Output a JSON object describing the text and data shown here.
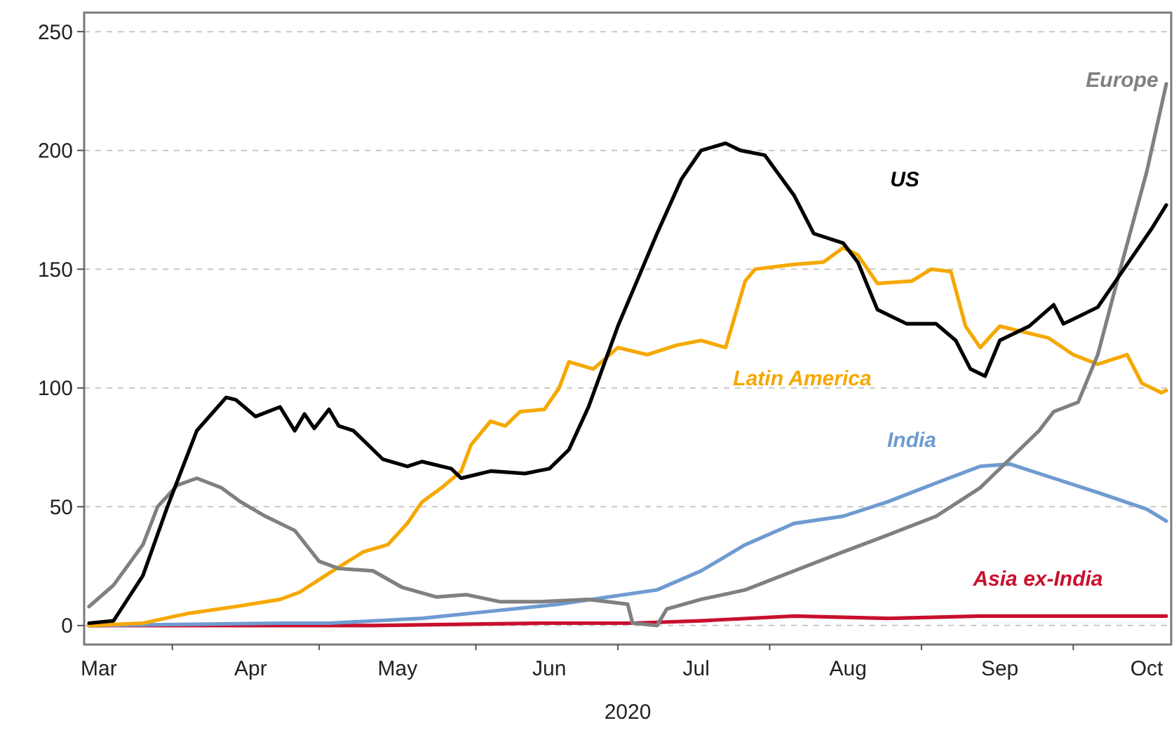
{
  "chart_data": {
    "type": "line",
    "xlabel": "2020",
    "xlim": [
      "2020-02-27",
      "2020-10-06"
    ],
    "ylim": [
      -8,
      258
    ],
    "xticks": [
      {
        "value": "2020-03-01",
        "label": "Mar"
      },
      {
        "value": "2020-03-16",
        "label": null
      },
      {
        "value": "2020-04-01",
        "label": "Apr"
      },
      {
        "value": "2020-04-15",
        "label": null
      },
      {
        "value": "2020-05-01",
        "label": "May"
      },
      {
        "value": "2020-05-17",
        "label": null
      },
      {
        "value": "2020-06-01",
        "label": "Jun"
      },
      {
        "value": "2020-06-15",
        "label": null
      },
      {
        "value": "2020-07-01",
        "label": "Jul"
      },
      {
        "value": "2020-07-16",
        "label": null
      },
      {
        "value": "2020-08-01",
        "label": "Aug"
      },
      {
        "value": "2020-08-16",
        "label": null
      },
      {
        "value": "2020-09-01",
        "label": "Sep"
      },
      {
        "value": "2020-09-16",
        "label": null
      },
      {
        "value": "2020-10-01",
        "label": "Oct"
      }
    ],
    "yticks": [
      0,
      50,
      100,
      150,
      200,
      250
    ],
    "grid": "y",
    "series": [
      {
        "name": "Asia ex-India",
        "color": "#c8102e",
        "x": [
          "2020-02-28",
          "2020-04-26",
          "2020-05-30",
          "2020-06-18",
          "2020-07-02",
          "2020-07-21",
          "2020-08-09",
          "2020-08-28",
          "2020-09-21",
          "2020-10-05"
        ],
        "values": [
          0,
          0,
          1,
          1,
          2,
          4,
          3,
          4,
          4,
          4
        ]
      },
      {
        "name": "India",
        "color": "#6f9bd1",
        "x": [
          "2020-02-28",
          "2020-04-07",
          "2020-04-17",
          "2020-05-06",
          "2020-05-20",
          "2020-06-03",
          "2020-06-23",
          "2020-07-02",
          "2020-07-11",
          "2020-07-21",
          "2020-07-31",
          "2020-08-09",
          "2020-08-19",
          "2020-08-28",
          "2020-09-03",
          "2020-09-12",
          "2020-09-21",
          "2020-10-01",
          "2020-10-05"
        ],
        "values": [
          0,
          1,
          1,
          3,
          6,
          9,
          15,
          23,
          34,
          43,
          46,
          52,
          60,
          67,
          68,
          62,
          56,
          49,
          44
        ]
      },
      {
        "name": "Latin America",
        "color": "#f5a800",
        "x": [
          "2020-02-28",
          "2020-03-10",
          "2020-03-19",
          "2020-03-29",
          "2020-04-07",
          "2020-04-11",
          "2020-04-17",
          "2020-04-24",
          "2020-04-29",
          "2020-05-03",
          "2020-05-06",
          "2020-05-10",
          "2020-05-14",
          "2020-05-16",
          "2020-05-20",
          "2020-05-23",
          "2020-05-26",
          "2020-05-31",
          "2020-06-03",
          "2020-06-05",
          "2020-06-10",
          "2020-06-15",
          "2020-06-21",
          "2020-06-27",
          "2020-07-02",
          "2020-07-07",
          "2020-07-11",
          "2020-07-13",
          "2020-07-21",
          "2020-07-27",
          "2020-07-31",
          "2020-08-03",
          "2020-08-07",
          "2020-08-14",
          "2020-08-18",
          "2020-08-22",
          "2020-08-25",
          "2020-08-28",
          "2020-09-01",
          "2020-09-07",
          "2020-09-11",
          "2020-09-16",
          "2020-09-21",
          "2020-09-27",
          "2020-09-30",
          "2020-10-04",
          "2020-10-05"
        ],
        "values": [
          0,
          1,
          5,
          8,
          11,
          14,
          22,
          31,
          34,
          43,
          52,
          58,
          65,
          76,
          86,
          84,
          90,
          91,
          100,
          111,
          108,
          117,
          114,
          118,
          120,
          117,
          145,
          150,
          152,
          153,
          159,
          156,
          144,
          145,
          150,
          149,
          126,
          117,
          126,
          123,
          121,
          114,
          110,
          114,
          102,
          98,
          99
        ]
      },
      {
        "name": "Europe",
        "color": "#808080",
        "x": [
          "2020-02-28",
          "2020-03-04",
          "2020-03-10",
          "2020-03-13",
          "2020-03-17",
          "2020-03-21",
          "2020-03-26",
          "2020-03-30",
          "2020-04-04",
          "2020-04-10",
          "2020-04-15",
          "2020-04-19",
          "2020-04-26",
          "2020-05-02",
          "2020-05-09",
          "2020-05-15",
          "2020-05-22",
          "2020-05-30",
          "2020-06-09",
          "2020-06-17",
          "2020-06-18",
          "2020-06-23",
          "2020-06-25",
          "2020-07-02",
          "2020-07-11",
          "2020-07-21",
          "2020-07-31",
          "2020-08-09",
          "2020-08-19",
          "2020-08-28",
          "2020-09-03",
          "2020-09-09",
          "2020-09-12",
          "2020-09-17",
          "2020-09-21",
          "2020-09-26",
          "2020-10-01",
          "2020-10-05"
        ],
        "values": [
          8,
          17,
          34,
          50,
          59,
          62,
          58,
          52,
          46,
          40,
          27,
          24,
          23,
          16,
          12,
          13,
          10,
          10,
          11,
          9,
          1,
          0,
          7,
          11,
          15,
          23,
          31,
          38,
          46,
          58,
          70,
          82,
          90,
          94,
          114,
          153,
          191,
          228
        ]
      },
      {
        "name": "US",
        "color": "#000000",
        "x": [
          "2020-02-28",
          "2020-03-04",
          "2020-03-10",
          "2020-03-15",
          "2020-03-21",
          "2020-03-27",
          "2020-03-29",
          "2020-04-02",
          "2020-04-07",
          "2020-04-10",
          "2020-04-12",
          "2020-04-14",
          "2020-04-17",
          "2020-04-19",
          "2020-04-22",
          "2020-04-28",
          "2020-05-03",
          "2020-05-06",
          "2020-05-12",
          "2020-05-14",
          "2020-05-20",
          "2020-05-27",
          "2020-06-01",
          "2020-06-05",
          "2020-06-09",
          "2020-06-15",
          "2020-06-23",
          "2020-06-28",
          "2020-07-02",
          "2020-07-07",
          "2020-07-10",
          "2020-07-15",
          "2020-07-21",
          "2020-07-25",
          "2020-07-31",
          "2020-08-03",
          "2020-08-07",
          "2020-08-13",
          "2020-08-19",
          "2020-08-23",
          "2020-08-26",
          "2020-08-29",
          "2020-09-01",
          "2020-09-07",
          "2020-09-12",
          "2020-09-14",
          "2020-09-21",
          "2020-09-26",
          "2020-10-02",
          "2020-10-05"
        ],
        "values": [
          1,
          2,
          21,
          50,
          82,
          96,
          95,
          88,
          92,
          82,
          89,
          83,
          91,
          84,
          82,
          70,
          67,
          69,
          66,
          62,
          65,
          64,
          66,
          74,
          92,
          126,
          165,
          188,
          200,
          203,
          200,
          198,
          181,
          165,
          161,
          153,
          133,
          127,
          127,
          120,
          108,
          105,
          120,
          126,
          135,
          127,
          134,
          149,
          167,
          177
        ]
      }
    ]
  }
}
